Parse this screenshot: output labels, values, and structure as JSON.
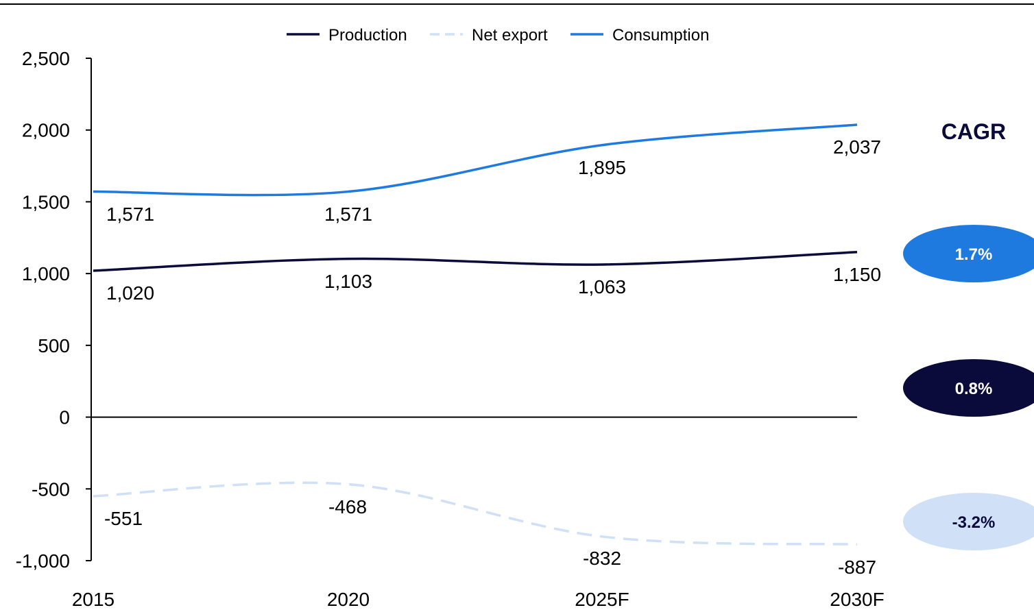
{
  "chart_data": {
    "type": "line",
    "categories": [
      "2015",
      "2020",
      "2025F",
      "2030F"
    ],
    "ylim": [
      -1000,
      2500
    ],
    "yticks": [
      2500,
      2000,
      1500,
      1000,
      500,
      0,
      -500,
      -1000
    ],
    "ytick_labels": [
      "2,500",
      "2,000",
      "1,500",
      "1,000",
      "500",
      "0",
      "-500",
      "-1,000"
    ],
    "grid": false,
    "legend_position": "top-center",
    "series": [
      {
        "name": "Production",
        "values": [
          1020,
          1103,
          1063,
          1150
        ],
        "labels": [
          "1,020",
          "1,103",
          "1,063",
          "1,150"
        ],
        "color": "#0b0b3b",
        "dashed": false
      },
      {
        "name": "Net export",
        "values": [
          -551,
          -468,
          -832,
          -887
        ],
        "labels": [
          "-551",
          "-468",
          "-832",
          "-887"
        ],
        "color": "#cfe0f7",
        "dashed": true
      },
      {
        "name": "Consumption",
        "values": [
          1571,
          1571,
          1895,
          2037
        ],
        "labels": [
          "1,571",
          "1,571",
          "1,895",
          "2,037"
        ],
        "color": "#1f7ae0",
        "dashed": false
      }
    ],
    "cagr": {
      "title": "CAGR",
      "items": [
        {
          "series": "Consumption",
          "value": "1.7%",
          "fill": "#1f7ae0",
          "text_color": "#ffffff"
        },
        {
          "series": "Production",
          "value": "0.8%",
          "fill": "#0b0b3b",
          "text_color": "#ffffff"
        },
        {
          "series": "Net export",
          "value": "-3.2%",
          "fill": "#cfe0f7",
          "text_color": "#0b0b3b"
        }
      ]
    }
  }
}
